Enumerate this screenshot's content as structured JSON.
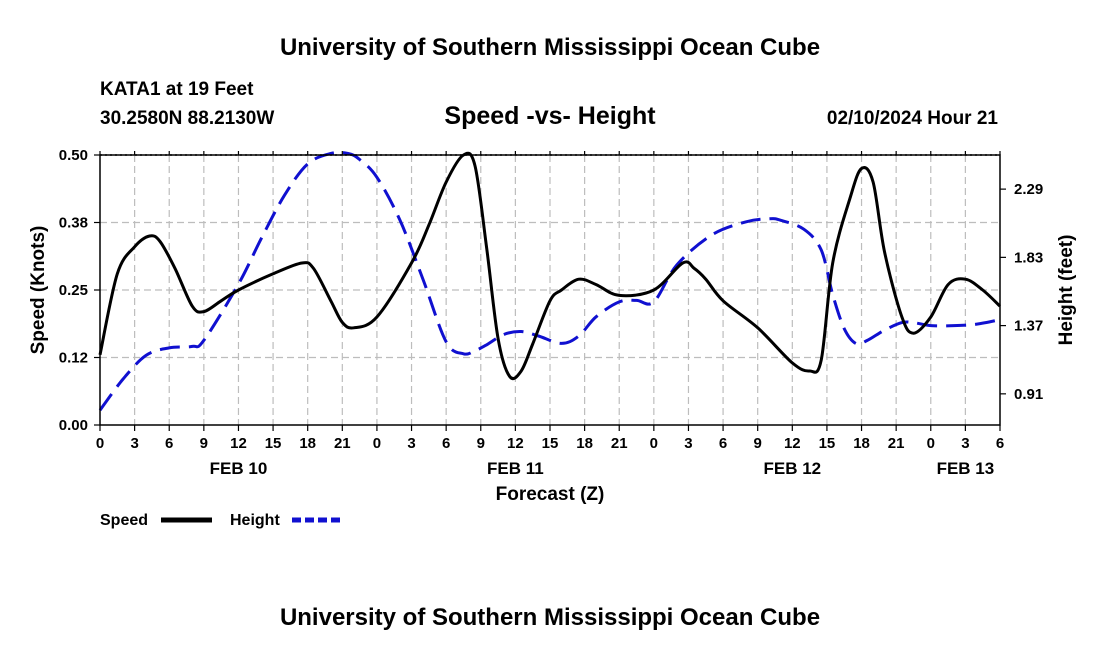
{
  "header": {
    "title_top": "University of Southern Mississippi Ocean Cube",
    "title_bottom": "University of Southern Mississippi Ocean Cube",
    "station": "KATA1 at 19 Feet",
    "coords": "30.2580N  88.2130W",
    "subtitle": "Speed -vs- Height",
    "datetime": "02/10/2024 Hour 21"
  },
  "chart_data": {
    "type": "line",
    "title": "Speed -vs- Height",
    "xlabel": "Forecast (Z)",
    "ylabel": "Speed (Knots)",
    "y2label": "Height (feet)",
    "x_unit": "hours since FEB 10 00Z",
    "xlim": [
      0,
      78
    ],
    "ylim": [
      0,
      0.5
    ],
    "y2lim": [
      0.7,
      2.52
    ],
    "x_ticks": [
      0,
      3,
      6,
      9,
      12,
      15,
      18,
      21,
      24,
      27,
      30,
      33,
      36,
      39,
      42,
      45,
      48,
      51,
      54,
      57,
      60,
      63,
      66,
      69,
      72,
      75,
      78
    ],
    "x_tick_labels": [
      "0",
      "3",
      "6",
      "9",
      "12",
      "15",
      "18",
      "21",
      "0",
      "3",
      "6",
      "9",
      "12",
      "15",
      "18",
      "21",
      "0",
      "3",
      "6",
      "9",
      "12",
      "15",
      "18",
      "21",
      "0",
      "3",
      "6"
    ],
    "y_ticks": [
      0,
      0.125,
      0.25,
      0.375,
      0.5
    ],
    "y_tick_labels": [
      "0.00",
      "0.12",
      "0.25",
      "0.38",
      "0.50"
    ],
    "y2_ticks": [
      0.91,
      1.37,
      1.83,
      2.29
    ],
    "y2_tick_labels": [
      "0.91",
      "1.37",
      "1.83",
      "2.29"
    ],
    "day_labels": [
      {
        "x": 12,
        "label": "FEB 10"
      },
      {
        "x": 36,
        "label": "FEB 11"
      },
      {
        "x": 60,
        "label": "FEB 12"
      },
      {
        "x": 75,
        "label": "FEB 13"
      }
    ],
    "grid": true,
    "legend_position": "bottom-left",
    "series": [
      {
        "name": "Speed",
        "axis": "left",
        "color": "#000000",
        "dash": "solid",
        "x": [
          0,
          1.5,
          3,
          4.3,
          5.2,
          6.5,
          8,
          9,
          10.5,
          12,
          15,
          17.5,
          18.5,
          20,
          21,
          22,
          24,
          27,
          28.5,
          30,
          31.5,
          32.5,
          33.5,
          34.5,
          35.5,
          36.5,
          37.5,
          39,
          40,
          41.5,
          43,
          45,
          48,
          50.5,
          51.5,
          52.5,
          54,
          57,
          60,
          61.5,
          62.5,
          63.5,
          65,
          66,
          67,
          68,
          69.5,
          70.5,
          72,
          73.5,
          75,
          76.5,
          78
        ],
        "values": [
          0.13,
          0.28,
          0.33,
          0.35,
          0.34,
          0.29,
          0.22,
          0.21,
          0.23,
          0.25,
          0.28,
          0.3,
          0.29,
          0.23,
          0.19,
          0.18,
          0.2,
          0.3,
          0.37,
          0.45,
          0.5,
          0.48,
          0.33,
          0.16,
          0.09,
          0.1,
          0.15,
          0.23,
          0.25,
          0.27,
          0.26,
          0.24,
          0.25,
          0.3,
          0.29,
          0.27,
          0.23,
          0.18,
          0.115,
          0.1,
          0.12,
          0.3,
          0.42,
          0.475,
          0.45,
          0.32,
          0.2,
          0.17,
          0.2,
          0.26,
          0.27,
          0.25,
          0.22
        ]
      },
      {
        "name": "Height",
        "axis": "right",
        "color": "#1010d0",
        "dash": "dashed",
        "x": [
          0,
          2,
          4,
          6,
          8,
          9,
          12,
          14,
          16,
          18,
          20,
          21.5,
          22.5,
          24,
          26,
          28,
          30,
          31.5,
          32.5,
          33.5,
          35,
          36.5,
          38,
          40,
          41.5,
          43,
          45,
          46.5,
          48,
          50,
          53,
          56,
          58,
          59,
          61,
          62.5,
          63.5,
          64.5,
          65.5,
          66.5,
          68,
          69.5,
          70.5,
          72,
          74,
          76,
          78
        ],
        "values": [
          0.8,
          1.01,
          1.17,
          1.22,
          1.23,
          1.27,
          1.65,
          1.96,
          2.25,
          2.46,
          2.53,
          2.53,
          2.49,
          2.37,
          2.08,
          1.68,
          1.26,
          1.18,
          1.2,
          1.24,
          1.31,
          1.33,
          1.3,
          1.25,
          1.3,
          1.43,
          1.53,
          1.54,
          1.53,
          1.78,
          1.98,
          2.07,
          2.09,
          2.08,
          2.02,
          1.88,
          1.58,
          1.35,
          1.25,
          1.27,
          1.34,
          1.39,
          1.39,
          1.37,
          1.37,
          1.38,
          1.41
        ]
      }
    ]
  }
}
